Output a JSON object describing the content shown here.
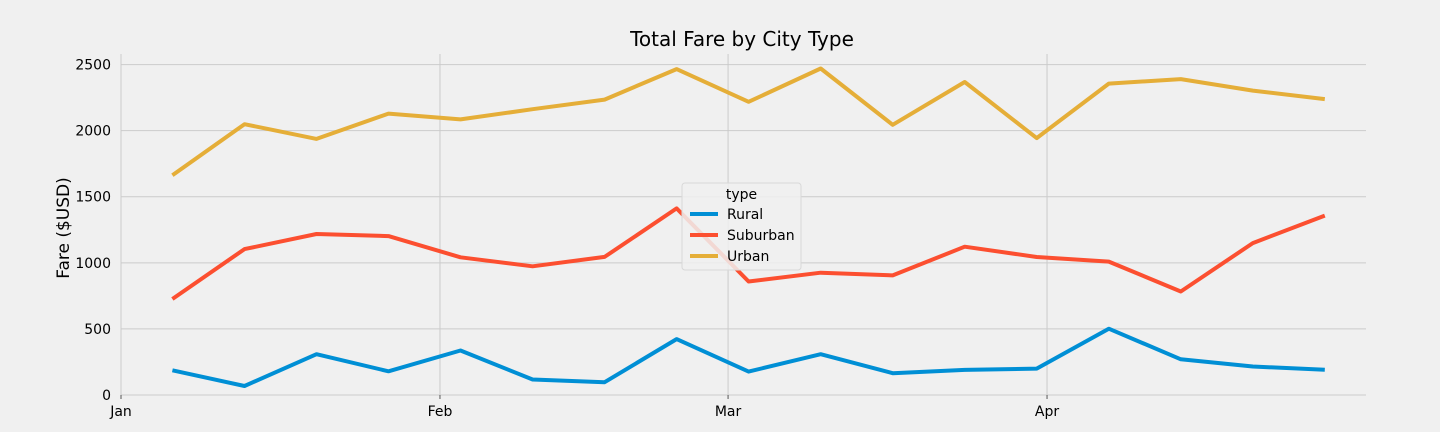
{
  "chart_data": {
    "type": "line",
    "title": "Total Fare by City Type",
    "xlabel": "",
    "ylabel": "Fare ($USD)",
    "x": [
      "2019-01-06",
      "2019-01-13",
      "2019-01-20",
      "2019-01-27",
      "2019-02-03",
      "2019-02-10",
      "2019-02-17",
      "2019-02-24",
      "2019-03-03",
      "2019-03-10",
      "2019-03-17",
      "2019-03-24",
      "2019-03-31",
      "2019-04-07",
      "2019-04-14",
      "2019-04-21",
      "2019-04-28"
    ],
    "xlim": [
      "2019-01-01",
      "2019-05-02"
    ],
    "x_ticks": [
      {
        "date": "2019-01-01",
        "label": "Jan"
      },
      {
        "date": "2019-02-01",
        "label": "Feb"
      },
      {
        "date": "2019-03-01",
        "label": "Mar"
      },
      {
        "date": "2019-04-01",
        "label": "Apr"
      }
    ],
    "ylim": [
      0,
      2580
    ],
    "y_ticks": [
      0,
      500,
      1000,
      1500,
      2000,
      2500
    ],
    "grid": true,
    "legend": {
      "title": "type",
      "placement": "center"
    },
    "series": [
      {
        "name": "Rural",
        "color": "#008fd5",
        "values": [
          187,
          68,
          309,
          179,
          337,
          117,
          97,
          423,
          177,
          309,
          165,
          190,
          200,
          502,
          270,
          216,
          191
        ]
      },
      {
        "name": "Suburban",
        "color": "#fc4f30",
        "values": [
          726,
          1104,
          1218,
          1202,
          1042,
          974,
          1045,
          1412,
          859,
          925,
          905,
          1122,
          1044,
          1009,
          783,
          1149,
          1357
        ]
      },
      {
        "name": "Urban",
        "color": "#e5ae38",
        "values": [
          1662,
          2049,
          1938,
          2129,
          2085,
          2162,
          2235,
          2466,
          2218,
          2470,
          2044,
          2368,
          1944,
          2356,
          2390,
          2303,
          2239
        ]
      }
    ]
  }
}
